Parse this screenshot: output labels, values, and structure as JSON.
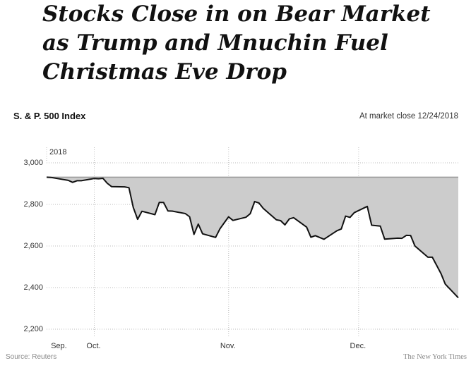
{
  "headline": {
    "line1": "Stocks Close in on Bear Market",
    "line2": "as Trump and Mnuchin Fuel",
    "line3": "Christmas Eve Drop"
  },
  "chart_data": {
    "type": "area",
    "title": "S. & P. 500 Index",
    "subtitle": "At market close  12/24/2018",
    "year_label": "2018",
    "source": "Source: Reuters",
    "credit": "The New York Times",
    "reference_value": 2930.75,
    "ylim": [
      2200,
      3000
    ],
    "y_ticks": [
      {
        "value": 3000,
        "label": "3,000"
      },
      {
        "value": 2800,
        "label": "2,800"
      },
      {
        "value": 2600,
        "label": "2,600"
      },
      {
        "value": 2400,
        "label": "2,400"
      },
      {
        "value": 2200,
        "label": "2,200"
      }
    ],
    "xlim": [
      "2018-09-20",
      "2018-12-24"
    ],
    "x_labels": [
      {
        "date": "2018-09-23",
        "label": "Sep.",
        "gridline": false
      },
      {
        "date": "2018-10-01",
        "label": "Oct.",
        "gridline": true
      },
      {
        "date": "2018-11-01",
        "label": "Nov.",
        "gridline": true
      },
      {
        "date": "2018-12-01",
        "label": "Dec.",
        "gridline": true
      }
    ],
    "series": [
      {
        "x": [
          "2018-09-20",
          "2018-09-21",
          "2018-09-24",
          "2018-09-25",
          "2018-09-26",
          "2018-09-27",
          "2018-09-28",
          "2018-10-01",
          "2018-10-02",
          "2018-10-03",
          "2018-10-04",
          "2018-10-05",
          "2018-10-08",
          "2018-10-09",
          "2018-10-10",
          "2018-10-11",
          "2018-10-12",
          "2018-10-15",
          "2018-10-16",
          "2018-10-17",
          "2018-10-18",
          "2018-10-19",
          "2018-10-22",
          "2018-10-23",
          "2018-10-24",
          "2018-10-25",
          "2018-10-26",
          "2018-10-29",
          "2018-10-30",
          "2018-10-31",
          "2018-11-01",
          "2018-11-02",
          "2018-11-05",
          "2018-11-06",
          "2018-11-07",
          "2018-11-08",
          "2018-11-09",
          "2018-11-12",
          "2018-11-13",
          "2018-11-14",
          "2018-11-15",
          "2018-11-16",
          "2018-11-19",
          "2018-11-20",
          "2018-11-21",
          "2018-11-23",
          "2018-11-26",
          "2018-11-27",
          "2018-11-28",
          "2018-11-29",
          "2018-11-30",
          "2018-12-03",
          "2018-12-04",
          "2018-12-06",
          "2018-12-07",
          "2018-12-10",
          "2018-12-11",
          "2018-12-12",
          "2018-12-13",
          "2018-12-14",
          "2018-12-17",
          "2018-12-18",
          "2018-12-19",
          "2018-12-20",
          "2018-12-21",
          "2018-12-24"
        ],
        "values": [
          2930.75,
          2929.67,
          2919.37,
          2915.56,
          2905.97,
          2914.0,
          2913.98,
          2924.59,
          2923.43,
          2925.51,
          2901.61,
          2885.57,
          2884.43,
          2880.34,
          2785.68,
          2728.37,
          2767.13,
          2750.79,
          2809.92,
          2809.21,
          2768.78,
          2767.78,
          2755.88,
          2740.69,
          2656.1,
          2705.57,
          2658.69,
          2641.25,
          2682.63,
          2711.74,
          2740.37,
          2723.06,
          2738.31,
          2755.45,
          2813.89,
          2806.83,
          2781.01,
          2726.22,
          2722.18,
          2701.58,
          2730.2,
          2736.27,
          2690.73,
          2641.89,
          2649.93,
          2632.56,
          2673.45,
          2682.17,
          2743.79,
          2737.76,
          2760.17,
          2790.37,
          2700.06,
          2695.95,
          2633.08,
          2637.72,
          2636.78,
          2651.07,
          2650.54,
          2599.95,
          2545.94,
          2546.16,
          2506.96,
          2467.42,
          2416.62,
          2351.1
        ]
      }
    ]
  }
}
